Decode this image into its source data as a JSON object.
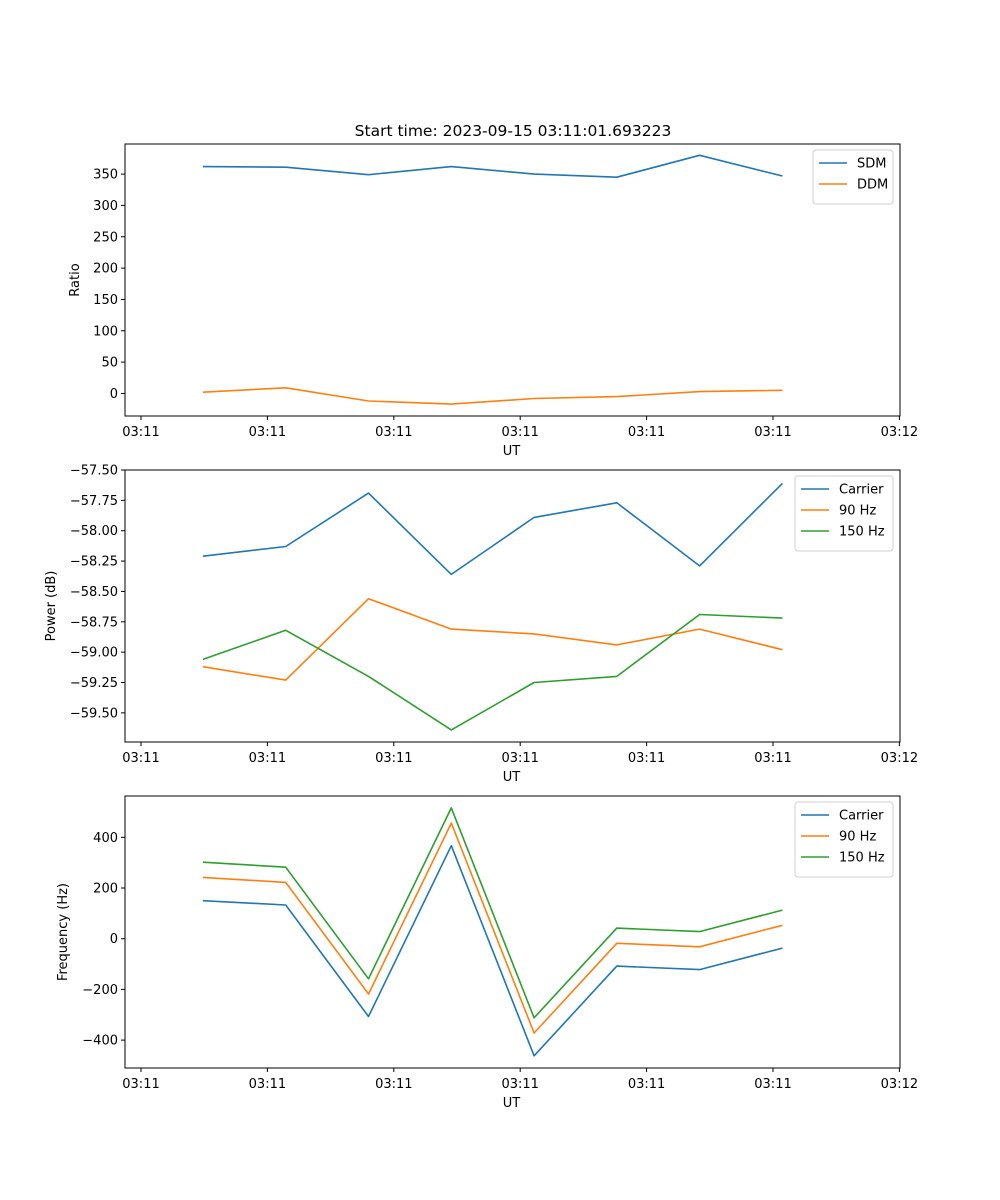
{
  "title": "Start time: 2023-09-15 03:11:01.693223",
  "colors": {
    "blue": "#1f77b4",
    "orange": "#ff7f0e",
    "green": "#2ca02c"
  },
  "chart_data": [
    {
      "type": "line",
      "x_tick_labels": [
        "03:11",
        "03:11",
        "03:11",
        "03:11",
        "03:11",
        "03:11",
        "03:12"
      ],
      "xlabel": "UT",
      "ylabel": "Ratio",
      "ylim": [
        -36,
        398
      ],
      "yticks": [
        0,
        50,
        100,
        150,
        200,
        250,
        300,
        350
      ],
      "ytick_labels": [
        "0",
        "50",
        "100",
        "150",
        "200",
        "250",
        "300",
        "350"
      ],
      "x_index": [
        0,
        1,
        2,
        3,
        4,
        5,
        6,
        7
      ],
      "legend_position": "upper right",
      "series": [
        {
          "name": "SDM",
          "color": "#1f77b4",
          "values": [
            362,
            361,
            349,
            362,
            350,
            345,
            380,
            347
          ]
        },
        {
          "name": "DDM",
          "color": "#ff7f0e",
          "values": [
            2,
            9,
            -12,
            -17,
            -8,
            -5,
            3,
            5
          ]
        }
      ]
    },
    {
      "type": "line",
      "x_tick_labels": [
        "03:11",
        "03:11",
        "03:11",
        "03:11",
        "03:11",
        "03:11",
        "03:12"
      ],
      "xlabel": "UT",
      "ylabel": "Power (dB)",
      "ylim": [
        -59.74,
        -57.5
      ],
      "yticks": [
        -57.5,
        -57.75,
        -58.0,
        -58.25,
        -58.5,
        -58.75,
        -59.0,
        -59.25,
        -59.5
      ],
      "ytick_labels": [
        "−57.50",
        "−57.75",
        "−58.00",
        "−58.25",
        "−58.50",
        "−58.75",
        "−59.00",
        "−59.25",
        "−59.50"
      ],
      "x_index": [
        0,
        1,
        2,
        3,
        4,
        5,
        6,
        7
      ],
      "legend_position": "upper right",
      "series": [
        {
          "name": "Carrier",
          "color": "#1f77b4",
          "values": [
            -58.21,
            -58.13,
            -57.69,
            -58.36,
            -57.89,
            -57.77,
            -58.29,
            -57.61
          ]
        },
        {
          "name": "90 Hz",
          "color": "#ff7f0e",
          "values": [
            -59.12,
            -59.23,
            -58.56,
            -58.81,
            -58.85,
            -58.94,
            -58.81,
            -58.98
          ]
        },
        {
          "name": "150 Hz",
          "color": "#2ca02c",
          "values": [
            -59.06,
            -58.82,
            -59.2,
            -59.64,
            -59.25,
            -59.2,
            -58.69,
            -58.72
          ]
        }
      ]
    },
    {
      "type": "line",
      "x_tick_labels": [
        "03:11",
        "03:11",
        "03:11",
        "03:11",
        "03:11",
        "03:11",
        "03:12"
      ],
      "xlabel": "UT",
      "ylabel": "Frequency (Hz)",
      "ylim": [
        -510,
        563
      ],
      "yticks": [
        -400,
        -200,
        0,
        200,
        400
      ],
      "ytick_labels": [
        "−400",
        "−200",
        "0",
        "200",
        "400"
      ],
      "x_index": [
        0,
        1,
        2,
        3,
        4,
        5,
        6,
        7
      ],
      "legend_position": "upper right",
      "series": [
        {
          "name": "Carrier",
          "color": "#1f77b4",
          "values": [
            150,
            133,
            -307,
            367,
            -462,
            -108,
            -122,
            -37
          ]
        },
        {
          "name": "90 Hz",
          "color": "#ff7f0e",
          "values": [
            242,
            222,
            -218,
            456,
            -372,
            -18,
            -32,
            53
          ]
        },
        {
          "name": "150 Hz",
          "color": "#2ca02c",
          "values": [
            302,
            282,
            -158,
            516,
            -312,
            42,
            28,
            113
          ]
        }
      ]
    }
  ]
}
